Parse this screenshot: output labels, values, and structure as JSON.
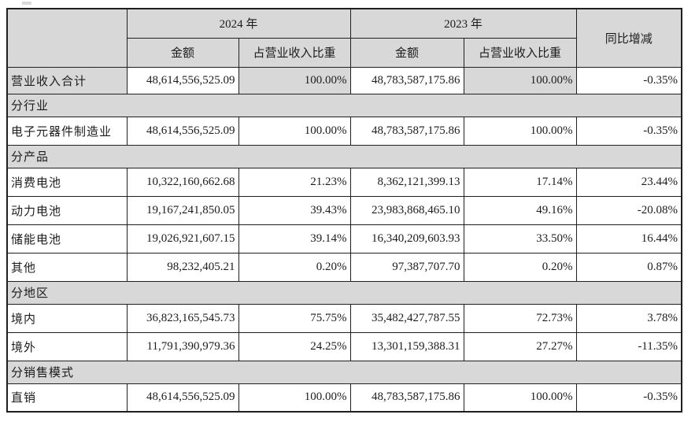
{
  "colors": {
    "page_bg": "#ffffff",
    "header_bg": "#d8d8d8",
    "section_bg": "#d8d8d8",
    "shaded_cell_bg": "#d8d8d8",
    "border": "#1f1f1f",
    "text": "#1c1c1c"
  },
  "table": {
    "header": {
      "corner": "",
      "year_2024": "2024 年",
      "year_2023": "2023 年",
      "yoy": "同比增减",
      "amount": "金额",
      "ratio": "占营业收入比重"
    },
    "rows": [
      {
        "type": "data",
        "shaded": true,
        "label": "营业收入合计",
        "amount_2024": "48,614,556,525.09",
        "ratio_2024": "100.00%",
        "amount_2023": "48,783,587,175.86",
        "ratio_2023": "100.00%",
        "yoy": "-0.35%"
      },
      {
        "type": "section",
        "label": "分行业"
      },
      {
        "type": "data",
        "label": "电子元器件制造业",
        "amount_2024": "48,614,556,525.09",
        "ratio_2024": "100.00%",
        "amount_2023": "48,783,587,175.86",
        "ratio_2023": "100.00%",
        "yoy": "-0.35%"
      },
      {
        "type": "section",
        "label": "分产品"
      },
      {
        "type": "data",
        "label": "消费电池",
        "amount_2024": "10,322,160,662.68",
        "ratio_2024": "21.23%",
        "amount_2023": "8,362,121,399.13",
        "ratio_2023": "17.14%",
        "yoy": "23.44%"
      },
      {
        "type": "data",
        "label": "动力电池",
        "amount_2024": "19,167,241,850.05",
        "ratio_2024": "39.43%",
        "amount_2023": "23,983,868,465.10",
        "ratio_2023": "49.16%",
        "yoy": "-20.08%"
      },
      {
        "type": "data",
        "label": "储能电池",
        "amount_2024": "19,026,921,607.15",
        "ratio_2024": "39.14%",
        "amount_2023": "16,340,209,603.93",
        "ratio_2023": "33.50%",
        "yoy": "16.44%"
      },
      {
        "type": "data",
        "label": "其他",
        "amount_2024": "98,232,405.21",
        "ratio_2024": "0.20%",
        "amount_2023": "97,387,707.70",
        "ratio_2023": "0.20%",
        "yoy": "0.87%"
      },
      {
        "type": "section",
        "label": "分地区"
      },
      {
        "type": "data",
        "label": "境内",
        "amount_2024": "36,823,165,545.73",
        "ratio_2024": "75.75%",
        "amount_2023": "35,482,427,787.55",
        "ratio_2023": "72.73%",
        "yoy": "3.78%"
      },
      {
        "type": "data",
        "label": "境外",
        "amount_2024": "11,791,390,979.36",
        "ratio_2024": "24.25%",
        "amount_2023": "13,301,159,388.31",
        "ratio_2023": "27.27%",
        "yoy": "-11.35%"
      },
      {
        "type": "section",
        "label": "分销售模式"
      },
      {
        "type": "data",
        "label": "直销",
        "amount_2024": "48,614,556,525.09",
        "ratio_2024": "100.00%",
        "amount_2023": "48,783,587,175.86",
        "ratio_2023": "100.00%",
        "yoy": "-0.35%"
      }
    ]
  }
}
